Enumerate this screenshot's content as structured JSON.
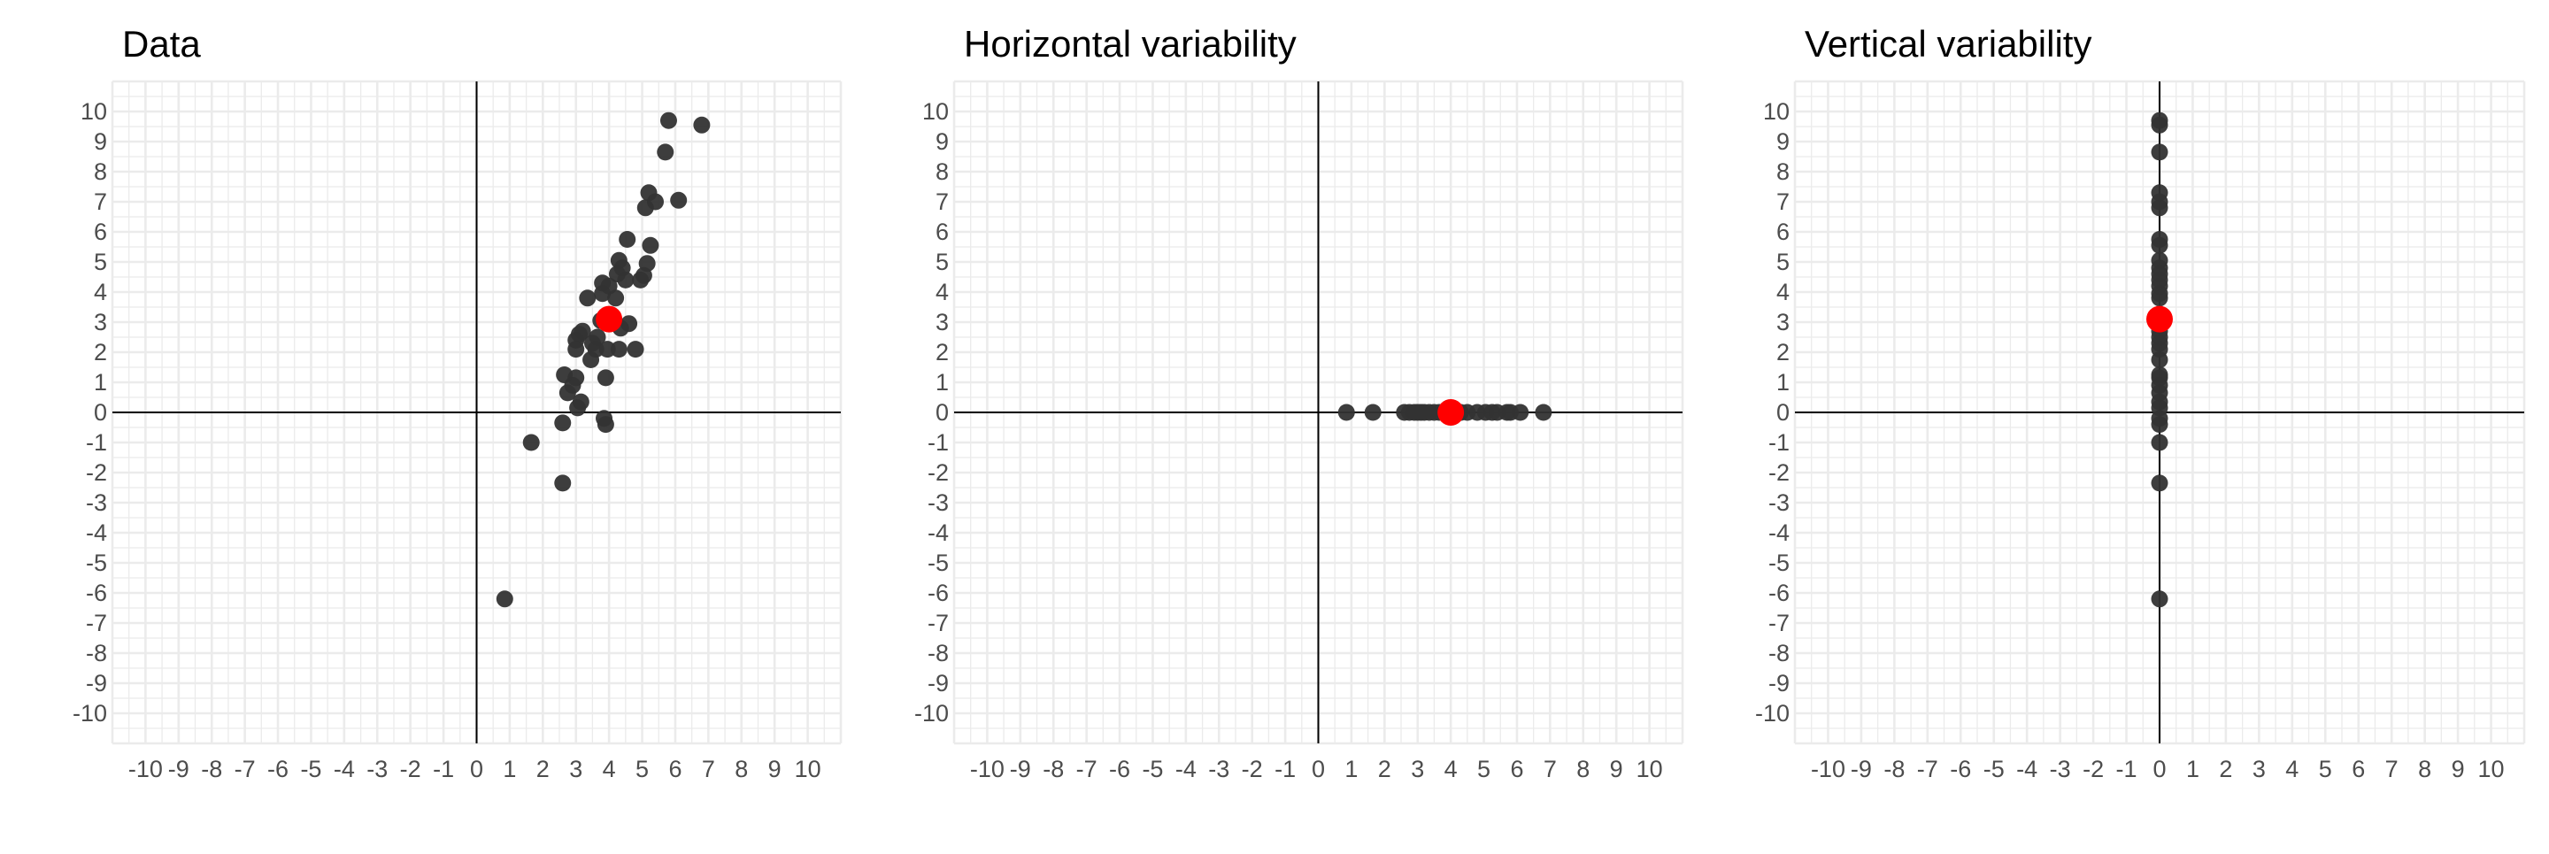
{
  "chart_data": [
    {
      "type": "scatter",
      "title": "Data",
      "xlabel": "",
      "ylabel": "",
      "xlim": [
        -11,
        11
      ],
      "ylim": [
        -11,
        11
      ],
      "x_ticks": [
        "-10",
        "-9",
        "-8",
        "-7",
        "-6",
        "-5",
        "-4",
        "-3",
        "-2",
        "-1",
        "0",
        "1",
        "2",
        "3",
        "4",
        "5",
        "6",
        "7",
        "8",
        "9",
        "10"
      ],
      "y_ticks": [
        "-10",
        "-9",
        "-8",
        "-7",
        "-6",
        "-5",
        "-4",
        "-3",
        "-2",
        "-1",
        "0",
        "1",
        "2",
        "3",
        "4",
        "5",
        "6",
        "7",
        "8",
        "9",
        "10"
      ],
      "grid": true,
      "reference_lines": {
        "x": 0,
        "y": 0
      },
      "series": [
        {
          "color": "#333333",
          "points": [
            [
              0.85,
              -6.2
            ],
            [
              1.65,
              -1.0
            ],
            [
              2.6,
              -2.35
            ],
            [
              2.6,
              -0.35
            ],
            [
              2.65,
              1.25
            ],
            [
              2.75,
              0.65
            ],
            [
              2.9,
              0.9
            ],
            [
              3.0,
              1.15
            ],
            [
              3.0,
              2.1
            ],
            [
              3.0,
              2.4
            ],
            [
              3.05,
              0.15
            ],
            [
              3.1,
              2.6
            ],
            [
              3.15,
              0.35
            ],
            [
              3.2,
              2.7
            ],
            [
              3.35,
              3.8
            ],
            [
              3.45,
              1.75
            ],
            [
              3.5,
              2.3
            ],
            [
              3.6,
              2.1
            ],
            [
              3.65,
              2.5
            ],
            [
              3.75,
              3.05
            ],
            [
              3.8,
              3.95
            ],
            [
              3.8,
              4.3
            ],
            [
              3.85,
              -0.2
            ],
            [
              3.9,
              -0.4
            ],
            [
              3.9,
              1.15
            ],
            [
              3.95,
              2.1
            ],
            [
              4.0,
              4.2
            ],
            [
              4.1,
              3.2
            ],
            [
              4.2,
              3.8
            ],
            [
              4.25,
              4.6
            ],
            [
              4.3,
              5.05
            ],
            [
              4.3,
              2.1
            ],
            [
              4.35,
              2.8
            ],
            [
              4.4,
              4.8
            ],
            [
              4.5,
              4.4
            ],
            [
              4.55,
              5.75
            ],
            [
              4.6,
              2.95
            ],
            [
              4.8,
              2.1
            ],
            [
              4.95,
              4.4
            ],
            [
              5.05,
              4.55
            ],
            [
              5.1,
              6.8
            ],
            [
              5.15,
              4.95
            ],
            [
              5.2,
              7.3
            ],
            [
              5.25,
              5.55
            ],
            [
              5.4,
              7.0
            ],
            [
              5.7,
              8.65
            ],
            [
              5.8,
              9.7
            ],
            [
              6.1,
              7.05
            ],
            [
              6.8,
              9.55
            ]
          ]
        },
        {
          "color": "#ff0000",
          "points": [
            [
              4.0,
              3.1
            ]
          ]
        }
      ]
    },
    {
      "type": "scatter",
      "title": "Horizontal variability",
      "xlabel": "",
      "ylabel": "",
      "xlim": [
        -11,
        11
      ],
      "ylim": [
        -11,
        11
      ],
      "x_ticks": [
        "-10",
        "-9",
        "-8",
        "-7",
        "-6",
        "-5",
        "-4",
        "-3",
        "-2",
        "-1",
        "0",
        "1",
        "2",
        "3",
        "4",
        "5",
        "6",
        "7",
        "8",
        "9",
        "10"
      ],
      "y_ticks": [
        "-10",
        "-9",
        "-8",
        "-7",
        "-6",
        "-5",
        "-4",
        "-3",
        "-2",
        "-1",
        "0",
        "1",
        "2",
        "3",
        "4",
        "5",
        "6",
        "7",
        "8",
        "9",
        "10"
      ],
      "grid": true,
      "reference_lines": {
        "x": 0,
        "y": 0
      },
      "series": [
        {
          "color": "#333333",
          "points": [
            [
              0.85,
              0
            ],
            [
              1.65,
              0
            ],
            [
              2.6,
              0
            ],
            [
              2.75,
              0
            ],
            [
              2.9,
              0
            ],
            [
              3.0,
              0
            ],
            [
              3.1,
              0
            ],
            [
              3.2,
              0
            ],
            [
              3.35,
              0
            ],
            [
              3.5,
              0
            ],
            [
              3.65,
              0
            ],
            [
              3.8,
              0
            ],
            [
              3.9,
              0
            ],
            [
              4.1,
              0
            ],
            [
              4.3,
              0
            ],
            [
              4.5,
              0
            ],
            [
              4.8,
              0
            ],
            [
              5.05,
              0
            ],
            [
              5.25,
              0
            ],
            [
              5.4,
              0
            ],
            [
              5.7,
              0
            ],
            [
              5.8,
              0
            ],
            [
              6.1,
              0
            ],
            [
              6.8,
              0
            ]
          ]
        },
        {
          "color": "#ff0000",
          "points": [
            [
              4.0,
              0
            ]
          ]
        }
      ]
    },
    {
      "type": "scatter",
      "title": "Vertical variability",
      "xlabel": "",
      "ylabel": "",
      "xlim": [
        -11,
        11
      ],
      "ylim": [
        -11,
        11
      ],
      "x_ticks": [
        "-10",
        "-9",
        "-8",
        "-7",
        "-6",
        "-5",
        "-4",
        "-3",
        "-2",
        "-1",
        "0",
        "1",
        "2",
        "3",
        "4",
        "5",
        "6",
        "7",
        "8",
        "9",
        "10"
      ],
      "y_ticks": [
        "-10",
        "-9",
        "-8",
        "-7",
        "-6",
        "-5",
        "-4",
        "-3",
        "-2",
        "-1",
        "0",
        "1",
        "2",
        "3",
        "4",
        "5",
        "6",
        "7",
        "8",
        "9",
        "10"
      ],
      "grid": true,
      "reference_lines": {
        "x": 0,
        "y": 0
      },
      "series": [
        {
          "color": "#333333",
          "points": [
            [
              0,
              -6.2
            ],
            [
              0,
              -2.35
            ],
            [
              0,
              -1.0
            ],
            [
              0,
              -0.4
            ],
            [
              0,
              -0.2
            ],
            [
              0,
              0.15
            ],
            [
              0,
              0.35
            ],
            [
              0,
              0.65
            ],
            [
              0,
              0.9
            ],
            [
              0,
              1.15
            ],
            [
              0,
              1.25
            ],
            [
              0,
              1.75
            ],
            [
              0,
              2.1
            ],
            [
              0,
              2.3
            ],
            [
              0,
              2.5
            ],
            [
              0,
              2.7
            ],
            [
              0,
              2.95
            ],
            [
              0,
              3.2
            ],
            [
              0,
              3.8
            ],
            [
              0,
              3.95
            ],
            [
              0,
              4.2
            ],
            [
              0,
              4.4
            ],
            [
              0,
              4.6
            ],
            [
              0,
              4.8
            ],
            [
              0,
              5.05
            ],
            [
              0,
              5.55
            ],
            [
              0,
              5.75
            ],
            [
              0,
              6.8
            ],
            [
              0,
              7.0
            ],
            [
              0,
              7.3
            ],
            [
              0,
              8.65
            ],
            [
              0,
              9.55
            ],
            [
              0,
              9.7
            ]
          ]
        },
        {
          "color": "#ff0000",
          "points": [
            [
              0,
              3.1
            ]
          ]
        }
      ]
    }
  ]
}
